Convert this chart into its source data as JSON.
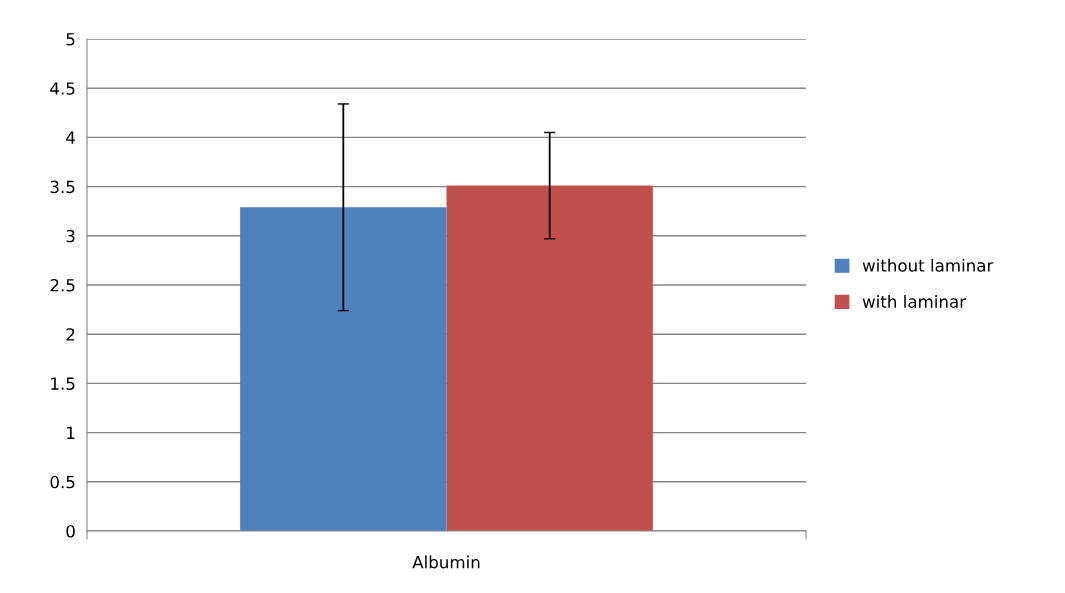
{
  "chart_data": {
    "type": "bar",
    "categories": [
      "Albumin"
    ],
    "series": [
      {
        "name": "without laminar",
        "color": "#4f81bd",
        "values": [
          3.29
        ],
        "errors": [
          [
            2.24,
            4.34
          ]
        ]
      },
      {
        "name": "with laminar",
        "color": "#c0504d",
        "values": [
          3.51
        ],
        "errors": [
          [
            2.97,
            4.05
          ]
        ]
      }
    ],
    "ylim": [
      0,
      5
    ],
    "yticks": [
      0,
      0.5,
      1,
      1.5,
      2,
      2.5,
      3,
      3.5,
      4,
      4.5,
      5
    ],
    "grid": "y",
    "legend": "right"
  }
}
